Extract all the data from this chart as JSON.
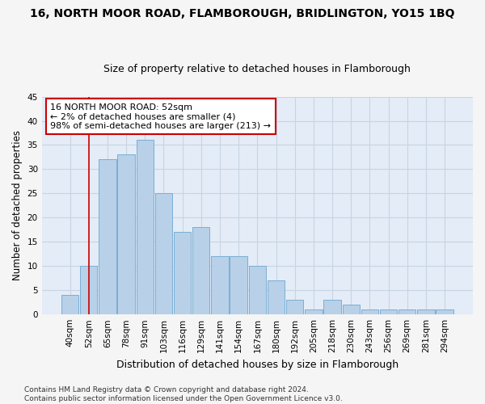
{
  "title": "16, NORTH MOOR ROAD, FLAMBOROUGH, BRIDLINGTON, YO15 1BQ",
  "subtitle": "Size of property relative to detached houses in Flamborough",
  "xlabel": "Distribution of detached houses by size in Flamborough",
  "ylabel": "Number of detached properties",
  "categories": [
    "40sqm",
    "52sqm",
    "65sqm",
    "78sqm",
    "91sqm",
    "103sqm",
    "116sqm",
    "129sqm",
    "141sqm",
    "154sqm",
    "167sqm",
    "180sqm",
    "192sqm",
    "205sqm",
    "218sqm",
    "230sqm",
    "243sqm",
    "256sqm",
    "269sqm",
    "281sqm",
    "294sqm"
  ],
  "values": [
    4,
    10,
    32,
    33,
    36,
    25,
    17,
    18,
    12,
    12,
    10,
    7,
    3,
    1,
    3,
    2,
    1,
    1,
    1,
    1,
    1
  ],
  "bar_color": "#b8d0e8",
  "bar_edge_color": "#7aafd4",
  "plot_bg_color": "#e4ecf7",
  "fig_bg_color": "#f5f5f5",
  "grid_color": "#c8d4e4",
  "vline_x": 1,
  "vline_color": "#cc0000",
  "annotation_text": "16 NORTH MOOR ROAD: 52sqm\n← 2% of detached houses are smaller (4)\n98% of semi-detached houses are larger (213) →",
  "annotation_box_color": "#ffffff",
  "annotation_box_edge": "#cc0000",
  "ylim": [
    0,
    45
  ],
  "yticks": [
    0,
    5,
    10,
    15,
    20,
    25,
    30,
    35,
    40,
    45
  ],
  "footer": "Contains HM Land Registry data © Crown copyright and database right 2024.\nContains public sector information licensed under the Open Government Licence v3.0.",
  "title_fontsize": 10,
  "subtitle_fontsize": 9,
  "xlabel_fontsize": 9,
  "ylabel_fontsize": 8.5,
  "tick_fontsize": 7.5,
  "annotation_fontsize": 8,
  "footer_fontsize": 6.5
}
